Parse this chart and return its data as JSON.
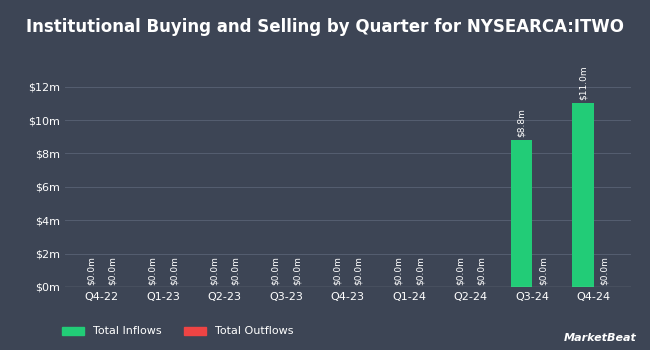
{
  "title": "Institutional Buying and Selling by Quarter for NYSEARCA:ITWO",
  "quarters": [
    "Q4-22",
    "Q1-23",
    "Q2-23",
    "Q3-23",
    "Q4-23",
    "Q1-24",
    "Q2-24",
    "Q3-24",
    "Q4-24"
  ],
  "inflows": [
    0.0,
    0.0,
    0.0,
    0.0,
    0.0,
    0.0,
    0.0,
    8800000,
    11000000
  ],
  "outflows": [
    0.0,
    0.0,
    0.0,
    0.0,
    0.0,
    0.0,
    0.0,
    0.0,
    0.0
  ],
  "inflow_labels": [
    "$0.0m",
    "$0.0m",
    "$0.0m",
    "$0.0m",
    "$0.0m",
    "$0.0m",
    "$0.0m",
    "$8.8m",
    "$11.0m"
  ],
  "outflow_labels": [
    "$0.0m",
    "$0.0m",
    "$0.0m",
    "$0.0m",
    "$0.0m",
    "$0.0m",
    "$0.0m",
    "$0.0m",
    "$0.0m"
  ],
  "inflow_color": "#22cc77",
  "outflow_color": "#ee4444",
  "background_color": "#3d4555",
  "text_color": "#ffffff",
  "grid_color": "#555e70",
  "bar_width": 0.35,
  "ylim": [
    0,
    13000000
  ],
  "yticks": [
    0,
    2000000,
    4000000,
    6000000,
    8000000,
    10000000,
    12000000
  ],
  "ytick_labels": [
    "$0m",
    "$2m",
    "$4m",
    "$6m",
    "$8m",
    "$10m",
    "$12m"
  ],
  "legend_inflow": "Total Inflows",
  "legend_outflow": "Total Outflows",
  "title_fontsize": 12,
  "axis_fontsize": 8,
  "label_fontsize": 6.5,
  "watermark": "MarketBeat"
}
